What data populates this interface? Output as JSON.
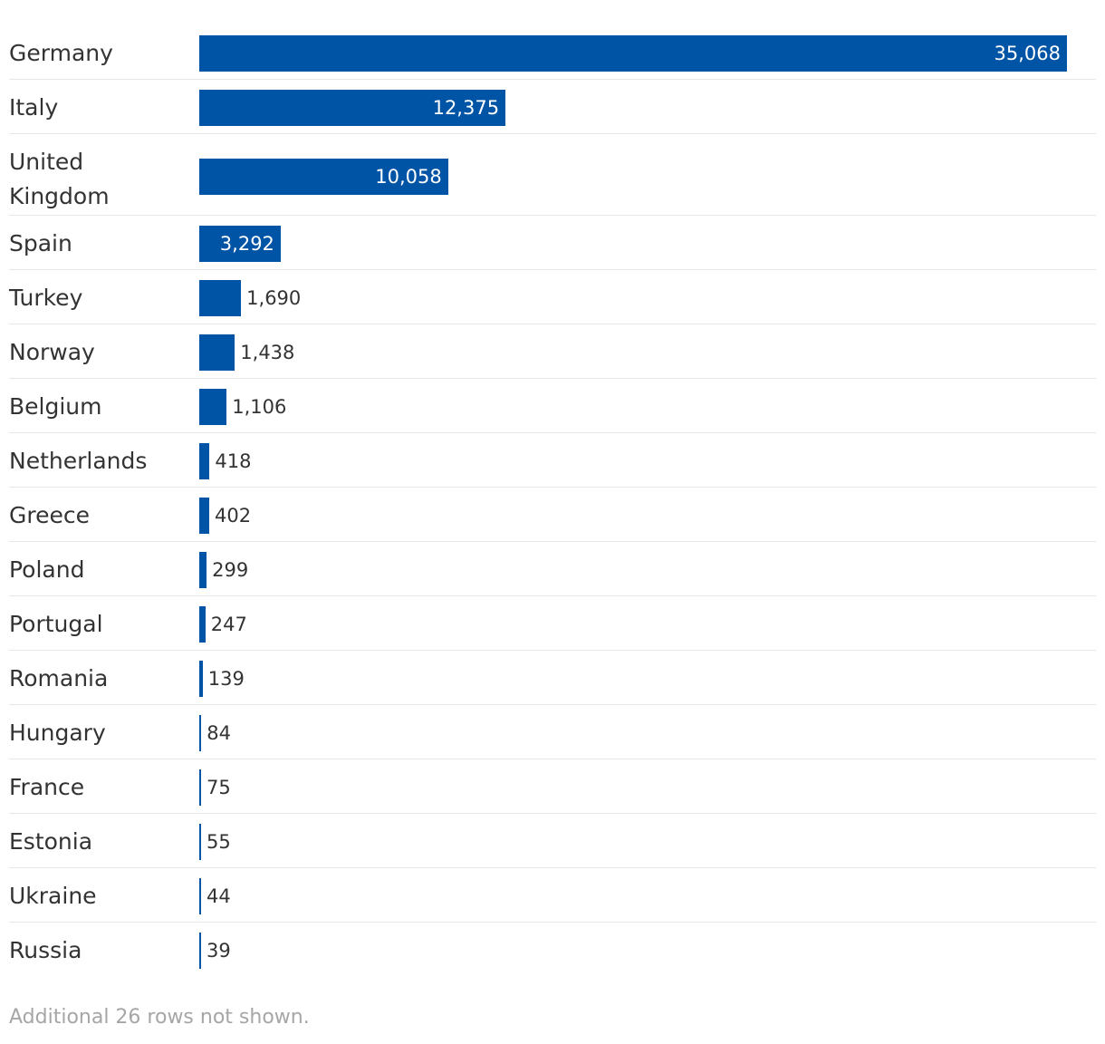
{
  "chart_data": {
    "type": "bar",
    "orientation": "horizontal",
    "categories": [
      "Germany",
      "Italy",
      "United Kingdom",
      "Spain",
      "Turkey",
      "Norway",
      "Belgium",
      "Netherlands",
      "Greece",
      "Poland",
      "Portugal",
      "Romania",
      "Hungary",
      "France",
      "Estonia",
      "Ukraine",
      "Russia"
    ],
    "category_display": [
      "Germany",
      "Italy",
      "United\nKingdom",
      "Spain",
      "Turkey",
      "Norway",
      "Belgium",
      "Netherlands",
      "Greece",
      "Poland",
      "Portugal",
      "Romania",
      "Hungary",
      "France",
      "Estonia",
      "Ukraine",
      "Russia"
    ],
    "values": [
      35068,
      12375,
      10058,
      3292,
      1690,
      1438,
      1106,
      418,
      402,
      299,
      247,
      139,
      84,
      75,
      55,
      44,
      39
    ],
    "value_labels": [
      "35,068",
      "12,375",
      "10,058",
      "3,292",
      "1,690",
      "1,438",
      "1,106",
      "418",
      "402",
      "299",
      "247",
      "139",
      "84",
      "75",
      "55",
      "44",
      "39"
    ],
    "xlim": [
      0,
      36000
    ],
    "title": "",
    "xlabel": "",
    "ylabel": "",
    "bar_color": "#0054a6",
    "grid": false
  },
  "footnote": "Additional 26 rows not shown."
}
